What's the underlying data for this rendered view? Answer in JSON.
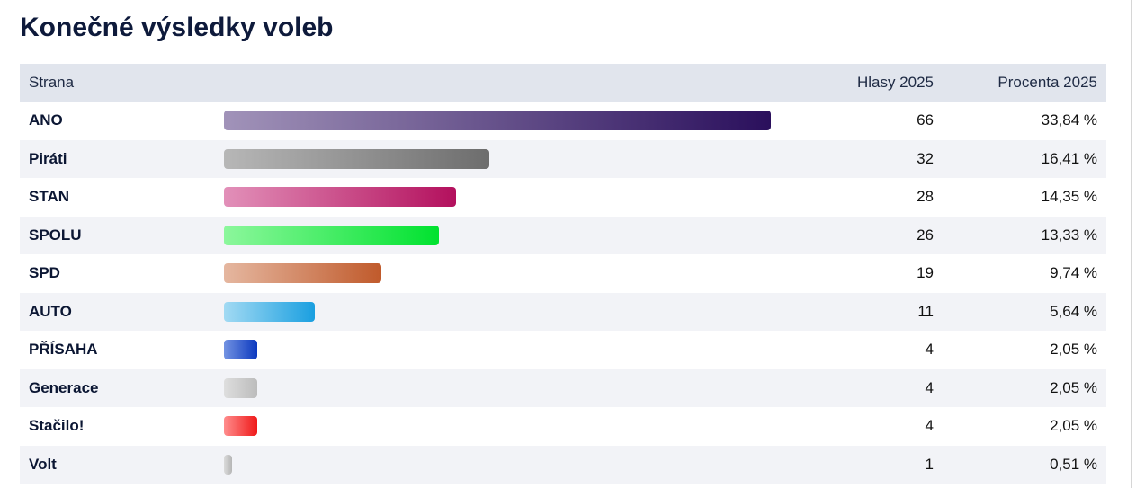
{
  "title": "Konečné výsledky voleb",
  "table": {
    "header": [
      "Strana",
      "Hlasy 2025",
      "Procenta 2025"
    ],
    "rows": [
      {
        "party": "ANO",
        "votes": "66",
        "percent": 33.84,
        "percent_label": "33,84 %",
        "colors": [
          "#a193b9",
          "#2a0f5c"
        ]
      },
      {
        "party": "Piráti",
        "votes": "32",
        "percent": 16.41,
        "percent_label": "16,41 %",
        "colors": [
          "#b7b7b7",
          "#6d6d6d"
        ]
      },
      {
        "party": "STAN",
        "votes": "28",
        "percent": 14.35,
        "percent_label": "14,35 %",
        "colors": [
          "#e290b9",
          "#b3105d"
        ]
      },
      {
        "party": "SPOLU",
        "votes": "26",
        "percent": 13.33,
        "percent_label": "13,33 %",
        "colors": [
          "#8cf79c",
          "#00e22f"
        ]
      },
      {
        "party": "SPD",
        "votes": "19",
        "percent": 9.74,
        "percent_label": "9,74 %",
        "colors": [
          "#e5b7a0",
          "#c05a2b"
        ]
      },
      {
        "party": "AUTO",
        "votes": "11",
        "percent": 5.64,
        "percent_label": "5,64 %",
        "colors": [
          "#a2daf3",
          "#1a9fe0"
        ]
      },
      {
        "party": "PŘÍSAHA",
        "votes": "4",
        "percent": 2.05,
        "percent_label": "2,05 %",
        "colors": [
          "#7393e2",
          "#0b39bf"
        ]
      },
      {
        "party": "Generace",
        "votes": "4",
        "percent": 2.05,
        "percent_label": "2,05 %",
        "colors": [
          "#dedede",
          "#bcbcbc"
        ]
      },
      {
        "party": "Stačilo!",
        "votes": "4",
        "percent": 2.05,
        "percent_label": "2,05 %",
        "colors": [
          "#ff8d8d",
          "#ef1919"
        ]
      },
      {
        "party": "Volt",
        "votes": "1",
        "percent": 0.51,
        "percent_label": "0,51 %",
        "colors": [
          "#dadada",
          "#b6b6b6"
        ]
      }
    ]
  }
}
